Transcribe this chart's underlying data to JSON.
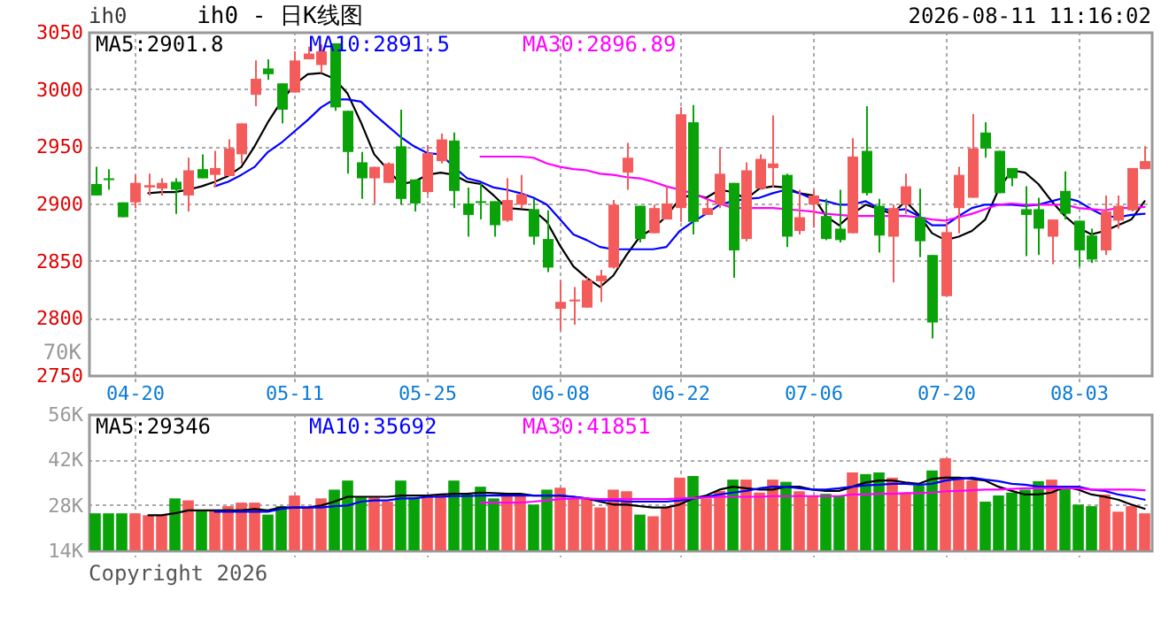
{
  "chart_data": [
    {
      "type": "candlestick",
      "title": "ih0 - 日K线图",
      "annotations": [
        "ih0",
        "2026-08-11 11:16:02"
      ],
      "categories": [
        null,
        null,
        null,
        "04-20",
        null,
        null,
        null,
        null,
        null,
        null,
        null,
        null,
        null,
        null,
        null,
        "05-11",
        null,
        null,
        null,
        null,
        null,
        null,
        null,
        null,
        null,
        "05-25",
        null,
        null,
        null,
        null,
        null,
        null,
        null,
        null,
        null,
        "06-08",
        null,
        null,
        null,
        null,
        null,
        null,
        null,
        null,
        "06-22",
        null,
        null,
        null,
        null,
        null,
        null,
        null,
        null,
        null,
        "07-06",
        null,
        null,
        null,
        null,
        null,
        null,
        null,
        null,
        null,
        "07-20",
        null,
        null,
        null,
        null,
        null,
        null,
        null,
        null,
        null,
        "08-03",
        null,
        null,
        null,
        null,
        null
      ],
      "ohlc": [
        [
          2917,
          2932,
          2907,
          2907
        ],
        [
          2922,
          2930,
          2912,
          2922
        ],
        [
          2901,
          2901,
          2888,
          2888
        ],
        [
          2901,
          2925,
          2896,
          2918
        ],
        [
          2914,
          2926,
          2907,
          2916
        ],
        [
          2913,
          2922,
          2907,
          2918
        ],
        [
          2919,
          2922,
          2891,
          2912
        ],
        [
          2907,
          2940,
          2893,
          2929
        ],
        [
          2930,
          2943,
          2922,
          2922
        ],
        [
          2925,
          2946,
          2914,
          2931
        ],
        [
          2924,
          2956,
          2924,
          2948
        ],
        [
          2943,
          2970,
          2935,
          2970
        ],
        [
          2995,
          3025,
          2985,
          3009
        ],
        [
          3018,
          3026,
          3008,
          3013
        ],
        [
          3005,
          3005,
          2970,
          2982
        ],
        [
          2997,
          3033,
          2997,
          3025
        ],
        [
          3026,
          3037,
          3026,
          3031
        ],
        [
          3021,
          3039,
          3014,
          3033
        ],
        [
          3040,
          3040,
          2981,
          2984
        ],
        [
          2981,
          2981,
          2926,
          2945
        ],
        [
          2936,
          2945,
          2904,
          2922
        ],
        [
          2922,
          2932,
          2900,
          2932
        ],
        [
          2918,
          2936,
          2918,
          2935
        ],
        [
          2950,
          2982,
          2899,
          2904
        ],
        [
          2921,
          2921,
          2893,
          2900
        ],
        [
          2910,
          2951,
          2908,
          2944
        ],
        [
          2937,
          2961,
          2935,
          2956
        ],
        [
          2955,
          2962,
          2896,
          2911
        ],
        [
          2900,
          2914,
          2871,
          2890
        ],
        [
          2902,
          2917,
          2886,
          2902
        ],
        [
          2902,
          2902,
          2871,
          2881
        ],
        [
          2885,
          2922,
          2884,
          2903
        ],
        [
          2899,
          2925,
          2896,
          2908
        ],
        [
          2895,
          2904,
          2864,
          2871
        ],
        [
          2869,
          2894,
          2840,
          2844
        ],
        [
          2808,
          2833,
          2789,
          2814
        ],
        [
          2816,
          2827,
          2794,
          2816
        ],
        [
          2809,
          2835,
          2809,
          2833
        ],
        [
          2832,
          2842,
          2814,
          2837
        ],
        [
          2844,
          2903,
          2843,
          2899
        ],
        [
          2927,
          2953,
          2912,
          2940
        ],
        [
          2898,
          2898,
          2866,
          2869
        ],
        [
          2874,
          2899,
          2874,
          2896
        ],
        [
          2886,
          2915,
          2886,
          2900
        ],
        [
          2896,
          2984,
          2884,
          2978
        ],
        [
          2971,
          2986,
          2873,
          2884
        ],
        [
          2890,
          2904,
          2890,
          2896
        ],
        [
          2899,
          2948,
          2896,
          2926
        ],
        [
          2918,
          2918,
          2835,
          2859
        ],
        [
          2869,
          2936,
          2867,
          2929
        ],
        [
          2913,
          2943,
          2912,
          2939
        ],
        [
          2931,
          2977,
          2914,
          2935
        ],
        [
          2925,
          2926,
          2862,
          2871
        ],
        [
          2876,
          2912,
          2873,
          2888
        ],
        [
          2899,
          2912,
          2879,
          2907
        ],
        [
          2889,
          2904,
          2868,
          2869
        ],
        [
          2878,
          2912,
          2866,
          2868
        ],
        [
          2874,
          2957,
          2874,
          2941
        ],
        [
          2946,
          2985,
          2907,
          2909
        ],
        [
          2898,
          2904,
          2857,
          2872
        ],
        [
          2871,
          2899,
          2831,
          2896
        ],
        [
          2899,
          2926,
          2891,
          2915
        ],
        [
          2888,
          2913,
          2853,
          2867
        ],
        [
          2855,
          2855,
          2782,
          2796
        ],
        [
          2819,
          2884,
          2819,
          2875
        ],
        [
          2896,
          2932,
          2874,
          2925
        ],
        [
          2905,
          2978,
          2905,
          2948
        ],
        [
          2962,
          2971,
          2940,
          2948
        ],
        [
          2946,
          2946,
          2909,
          2909
        ],
        [
          2931,
          2931,
          2915,
          2922
        ],
        [
          2895,
          2915,
          2854,
          2890
        ],
        [
          2895,
          2905,
          2855,
          2878
        ],
        [
          2871,
          2886,
          2847,
          2886
        ],
        [
          2911,
          2928,
          2886,
          2891
        ],
        [
          2885,
          2885,
          2845,
          2859
        ],
        [
          2872,
          2878,
          2848,
          2851
        ],
        [
          2859,
          2907,
          2855,
          2893
        ],
        [
          2885,
          2907,
          2878,
          2898
        ],
        [
          2894,
          2931,
          2893,
          2931
        ],
        [
          2930,
          2950,
          2930,
          2937
        ]
      ],
      "colors": [
        "#09a309",
        "#09a309",
        "#09a309",
        "#f45b5b",
        "#f45b5b",
        "#f45b5b",
        "#09a309",
        "#f45b5b",
        "#09a309",
        "#f45b5b",
        "#f45b5b",
        "#f45b5b",
        "#f45b5b",
        "#09a309",
        "#09a309",
        "#f45b5b",
        "#f45b5b",
        "#f45b5b",
        "#09a309",
        "#09a309",
        "#09a309",
        "#f45b5b",
        "#f45b5b",
        "#09a309",
        "#09a309",
        "#f45b5b",
        "#f45b5b",
        "#09a309",
        "#09a309",
        "#09a309",
        "#09a309",
        "#f45b5b",
        "#f45b5b",
        "#09a309",
        "#09a309",
        "#f45b5b",
        "#f45b5b",
        "#f45b5b",
        "#f45b5b",
        "#f45b5b",
        "#f45b5b",
        "#09a309",
        "#f45b5b",
        "#f45b5b",
        "#f45b5b",
        "#09a309",
        "#f45b5b",
        "#f45b5b",
        "#09a309",
        "#f45b5b",
        "#f45b5b",
        "#f45b5b",
        "#09a309",
        "#f45b5b",
        "#f45b5b",
        "#09a309",
        "#09a309",
        "#f45b5b",
        "#09a309",
        "#09a309",
        "#f45b5b",
        "#f45b5b",
        "#09a309",
        "#09a309",
        "#f45b5b",
        "#f45b5b",
        "#f45b5b",
        "#09a309",
        "#09a309",
        "#09a309",
        "#09a309",
        "#09a309",
        "#f45b5b",
        "#09a309",
        "#09a309",
        "#09a309",
        "#f45b5b",
        "#f45b5b",
        "#f45b5b",
        "#f45b5b"
      ],
      "series": [
        {
          "type": "line",
          "name": "MA5:2901.8",
          "color": "#000000",
          "values": [
            null,
            null,
            null,
            null,
            2909,
            2910,
            2910,
            2912,
            2915,
            2919,
            2924,
            2932,
            2950,
            2971,
            2989,
            3004,
            3013,
            3014,
            3009,
            2996,
            2971,
            2943,
            2930,
            2917,
            2919,
            2925,
            2927,
            2925,
            2919,
            2917,
            2907,
            2896,
            2895,
            2894,
            2884,
            2863,
            2845,
            2835,
            2827,
            2837,
            2855,
            2871,
            2878,
            2889,
            2904,
            2908,
            2905,
            2912,
            2910,
            2904,
            2913,
            2915,
            2914,
            2909,
            2907,
            2889,
            2881,
            2891,
            2899,
            2895,
            2891,
            2902,
            2890,
            2874,
            2868,
            2871,
            2876,
            2886,
            2912,
            2929,
            2927,
            2917,
            2902,
            2889,
            2879,
            2873,
            2876,
            2881,
            2886,
            2902
          ]
        },
        {
          "type": "line",
          "name": "MA10:2891.5",
          "color": "#0000ff",
          "values": [
            null,
            null,
            null,
            null,
            null,
            null,
            null,
            null,
            null,
            2915,
            2919,
            2925,
            2932,
            2945,
            2953,
            2963,
            2973,
            2984,
            2991,
            2991,
            2989,
            2978,
            2968,
            2958,
            2950,
            2944,
            2943,
            2932,
            2922,
            2919,
            2914,
            2912,
            2909,
            2905,
            2899,
            2886,
            2873,
            2868,
            2862,
            2860,
            2860,
            2860,
            2860,
            2862,
            2876,
            2884,
            2891,
            2899,
            2902,
            2904,
            2905,
            2909,
            2912,
            2909,
            2904,
            2902,
            2899,
            2899,
            2902,
            2896,
            2894,
            2895,
            2889,
            2881,
            2881,
            2889,
            2896,
            2899,
            2899,
            2899,
            2898,
            2899,
            2902,
            2905,
            2902,
            2895,
            2889,
            2888,
            2890,
            2891
          ]
        },
        {
          "type": "line",
          "name": "MA30:2896.89",
          "color": "#ff00ff",
          "values": [
            null,
            null,
            null,
            null,
            null,
            null,
            null,
            null,
            null,
            null,
            null,
            null,
            null,
            null,
            null,
            null,
            null,
            null,
            null,
            null,
            null,
            null,
            null,
            null,
            null,
            null,
            null,
            null,
            null,
            2941,
            2941,
            2941,
            2941,
            2940,
            2935,
            2932,
            2930,
            2929,
            2926,
            2925,
            2923,
            2922,
            2919,
            2915,
            2912,
            2909,
            2904,
            2900,
            2896,
            2896,
            2896,
            2896,
            2895,
            2894,
            2893,
            2891,
            2890,
            2889,
            2889,
            2889,
            2889,
            2889,
            2888,
            2886,
            2885,
            2888,
            2891,
            2895,
            2899,
            2900,
            2899,
            2899,
            2899,
            2899,
            2896,
            2895,
            2894,
            2896,
            2896,
            2897
          ]
        }
      ],
      "ylim": [
        2750,
        3050
      ],
      "yticks": [
        2750,
        2800,
        2850,
        2900,
        2950,
        3000,
        3050
      ],
      "grid": true,
      "legend": "top left"
    },
    {
      "type": "bar",
      "annotations": [
        "Copyright 2026",
        "70K"
      ],
      "tick_labels": "y",
      "categories": [
        null,
        null,
        null,
        null,
        null,
        null,
        null,
        null,
        null,
        null,
        null,
        null,
        null,
        null,
        null,
        null,
        null,
        null,
        null,
        null,
        null,
        null,
        null,
        null,
        null,
        null,
        null,
        null,
        null,
        null,
        null,
        null,
        null,
        null,
        null,
        null,
        null,
        null,
        null,
        null,
        null,
        null,
        null,
        null,
        null,
        null,
        null,
        null,
        null,
        null,
        null,
        null,
        null,
        null,
        null,
        null,
        null,
        null,
        null,
        null,
        null,
        null,
        null,
        null,
        null,
        null,
        null,
        null,
        null,
        null,
        null,
        null,
        null,
        null,
        null,
        null,
        null,
        null,
        null,
        null
      ],
      "series": [
        {
          "type": "bar",
          "colors": [
            "#09a309",
            "#09a309",
            "#09a309",
            "#f45b5b",
            "#f45b5b",
            "#f45b5b",
            "#09a309",
            "#f45b5b",
            "#09a309",
            "#f45b5b",
            "#f45b5b",
            "#f45b5b",
            "#f45b5b",
            "#09a309",
            "#09a309",
            "#f45b5b",
            "#f45b5b",
            "#f45b5b",
            "#09a309",
            "#09a309",
            "#09a309",
            "#f45b5b",
            "#f45b5b",
            "#09a309",
            "#09a309",
            "#f45b5b",
            "#f45b5b",
            "#09a309",
            "#09a309",
            "#09a309",
            "#09a309",
            "#f45b5b",
            "#f45b5b",
            "#09a309",
            "#09a309",
            "#f45b5b",
            "#f45b5b",
            "#f45b5b",
            "#f45b5b",
            "#f45b5b",
            "#f45b5b",
            "#09a309",
            "#f45b5b",
            "#f45b5b",
            "#f45b5b",
            "#09a309",
            "#f45b5b",
            "#f45b5b",
            "#09a309",
            "#f45b5b",
            "#f45b5b",
            "#f45b5b",
            "#09a309",
            "#f45b5b",
            "#f45b5b",
            "#09a309",
            "#09a309",
            "#f45b5b",
            "#09a309",
            "#09a309",
            "#f45b5b",
            "#f45b5b",
            "#09a309",
            "#09a309",
            "#f45b5b",
            "#f45b5b",
            "#f45b5b",
            "#09a309",
            "#09a309",
            "#09a309",
            "#09a309",
            "#09a309",
            "#f45b5b",
            "#09a309",
            "#09a309",
            "#09a309",
            "#f45b5b",
            "#f45b5b",
            "#f45b5b",
            "#f45b5b"
          ],
          "values": [
            25400,
            25400,
            25400,
            25400,
            24800,
            24800,
            30000,
            29400,
            26300,
            26300,
            27600,
            28700,
            28700,
            25000,
            27600,
            30900,
            27200,
            30000,
            32700,
            35500,
            30300,
            30300,
            29000,
            35500,
            30300,
            31200,
            31200,
            35500,
            31200,
            33600,
            30000,
            31200,
            31200,
            28100,
            32700,
            33300,
            30000,
            30000,
            27200,
            32700,
            32200,
            25000,
            24500,
            27200,
            36400,
            36900,
            30000,
            32300,
            35800,
            35800,
            31800,
            35800,
            35100,
            32200,
            30900,
            31400,
            30900,
            38000,
            37500,
            38000,
            36400,
            31800,
            34000,
            38600,
            42400,
            36400,
            35500,
            29000,
            30900,
            31800,
            32700,
            35300,
            35800,
            33100,
            28100,
            27600,
            31200,
            25900,
            27600,
            25400
          ]
        },
        {
          "type": "line",
          "name": "MA5:29346",
          "color": "#000000",
          "values": [
            null,
            null,
            null,
            null,
            24800,
            24800,
            25400,
            26300,
            26300,
            26300,
            26300,
            26300,
            26700,
            26300,
            27200,
            27200,
            27200,
            27800,
            29000,
            30500,
            30500,
            30500,
            30500,
            30900,
            30900,
            30900,
            31200,
            31400,
            31400,
            31800,
            31600,
            31400,
            31400,
            30900,
            30900,
            30900,
            30500,
            30000,
            29000,
            28100,
            28100,
            27600,
            27200,
            27200,
            28100,
            30000,
            30900,
            32700,
            33600,
            33100,
            32700,
            32700,
            33600,
            33600,
            32700,
            32300,
            32300,
            33600,
            34900,
            35500,
            35500,
            34900,
            34500,
            36000,
            36400,
            36400,
            36000,
            35500,
            33600,
            32300,
            31200,
            31200,
            31800,
            33600,
            32700,
            31200,
            30500,
            29600,
            28100,
            26800
          ]
        },
        {
          "type": "line",
          "name": "MA10:35692",
          "color": "#0000ff",
          "values": [
            null,
            null,
            null,
            null,
            null,
            null,
            null,
            null,
            null,
            25900,
            25900,
            25900,
            25900,
            25900,
            26800,
            27200,
            27200,
            27200,
            27600,
            27800,
            29000,
            29400,
            29400,
            30000,
            30000,
            30500,
            30500,
            30700,
            30700,
            30900,
            30900,
            30900,
            30900,
            30900,
            30900,
            30900,
            30500,
            30000,
            29400,
            29400,
            29000,
            29000,
            29000,
            29000,
            29400,
            30000,
            30500,
            31200,
            31800,
            32300,
            33100,
            33600,
            33600,
            33100,
            32700,
            32700,
            33100,
            33600,
            34000,
            34200,
            34500,
            34500,
            34200,
            34500,
            35500,
            36000,
            36400,
            35800,
            35300,
            34500,
            34200,
            33600,
            33600,
            33600,
            33600,
            32700,
            32300,
            31200,
            30500,
            29600
          ]
        },
        {
          "type": "line",
          "name": "MA30:41851",
          "color": "#ff00ff",
          "values": [
            null,
            null,
            null,
            null,
            null,
            null,
            null,
            null,
            null,
            null,
            null,
            null,
            null,
            null,
            null,
            null,
            null,
            null,
            null,
            null,
            null,
            null,
            null,
            null,
            null,
            null,
            null,
            null,
            null,
            28700,
            28700,
            28700,
            28700,
            29000,
            29400,
            29800,
            30000,
            30000,
            29800,
            29800,
            29800,
            29800,
            29800,
            29800,
            30000,
            30100,
            30300,
            30500,
            30500,
            30500,
            30500,
            30700,
            30700,
            30700,
            30700,
            30700,
            30700,
            31200,
            31200,
            31400,
            31400,
            31600,
            31600,
            31800,
            32200,
            32300,
            32500,
            32700,
            32700,
            32900,
            33100,
            33100,
            33100,
            33100,
            33100,
            32700,
            32700,
            32700,
            32700,
            32500
          ]
        }
      ],
      "ylim": [
        14000,
        56000
      ],
      "yticks": [
        {
          "value": 14000,
          "label": "14K"
        },
        {
          "value": 28000,
          "label": "28K"
        },
        {
          "value": 42000,
          "label": "42K"
        },
        {
          "value": 56000,
          "label": "56K"
        }
      ],
      "grid": true,
      "legend": "top left"
    }
  ]
}
